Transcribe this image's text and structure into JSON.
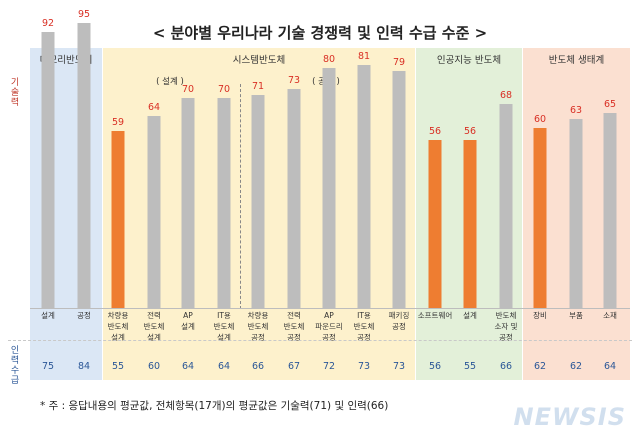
{
  "title": "< 분야별 우리나라 기술 경쟁력 및 인력 수급 수준 >",
  "side_labels": {
    "tech": "기술력",
    "workforce": "인력수급"
  },
  "sections": [
    {
      "label": "메모리반도체",
      "color": "#dbe7f5"
    },
    {
      "label": "시스템반도체",
      "color": "#fdf1cc"
    },
    {
      "label": "인공지능 반도체",
      "color": "#e3f0d9"
    },
    {
      "label": "반도체 생태계",
      "color": "#fbe0d1"
    }
  ],
  "sub_labels": {
    "design": "( 설계 )",
    "process": "( 공정 )"
  },
  "colors": {
    "bar_gray": "#bdbdbd",
    "bar_orange": "#ee7d31",
    "value_red": "#d93025",
    "workforce_blue": "#2b5797"
  },
  "chart_data": {
    "type": "bar",
    "title": "분야별 우리나라 기술 경쟁력 및 인력 수급 수준",
    "categories": [
      "설계",
      "공정",
      "차량용 반도체 설계",
      "전력 반도체 설계",
      "AP 설계",
      "IT용 반도체 설계",
      "차량용 반도체 공정",
      "전력 반도체 공정",
      "AP 파운드리 공정",
      "IT용 반도체 공정",
      "패키징 공정",
      "소프트웨어",
      "설계",
      "반도체 소자 및 공정",
      "장비",
      "부품",
      "소재"
    ],
    "category_lines": [
      [
        "설계"
      ],
      [
        "공정"
      ],
      [
        "차량용",
        "반도체",
        "설계"
      ],
      [
        "전력",
        "반도체",
        "설계"
      ],
      [
        "AP",
        "설계"
      ],
      [
        "IT용",
        "반도체",
        "설계"
      ],
      [
        "차량용",
        "반도체",
        "공정"
      ],
      [
        "전력",
        "반도체",
        "공정"
      ],
      [
        "AP",
        "파운드리",
        "공정"
      ],
      [
        "IT용",
        "반도체",
        "공정"
      ],
      [
        "패키징",
        "공정"
      ],
      [
        "소프트웨어"
      ],
      [
        "설계"
      ],
      [
        "반도체",
        "소자 및",
        "공정"
      ],
      [
        "장비"
      ],
      [
        "부품"
      ],
      [
        "소재"
      ]
    ],
    "series": [
      {
        "name": "기술력",
        "values": [
          92,
          95,
          59,
          64,
          70,
          70,
          71,
          73,
          80,
          81,
          79,
          56,
          56,
          68,
          60,
          63,
          65
        ]
      },
      {
        "name": "인력수급",
        "values": [
          75,
          84,
          55,
          60,
          64,
          64,
          66,
          67,
          72,
          73,
          73,
          56,
          55,
          66,
          62,
          62,
          64
        ]
      }
    ],
    "highlighted": [
      false,
      false,
      true,
      false,
      false,
      false,
      false,
      false,
      false,
      false,
      false,
      true,
      true,
      false,
      true,
      false,
      false
    ],
    "groups": [
      {
        "name": "메모리반도체",
        "range": [
          0,
          1
        ]
      },
      {
        "name": "시스템반도체",
        "range": [
          2,
          10
        ]
      },
      {
        "name": "인공지능 반도체",
        "range": [
          11,
          13
        ]
      },
      {
        "name": "반도체 생태계",
        "range": [
          14,
          16
        ]
      }
    ],
    "ylim": [
      0,
      100
    ]
  },
  "footnote": "* 주 : 응답내용의 평균값, 전체항목(17개)의 평균값은 기술력(71) 및 인력(66)",
  "watermark": "NEWSIS"
}
